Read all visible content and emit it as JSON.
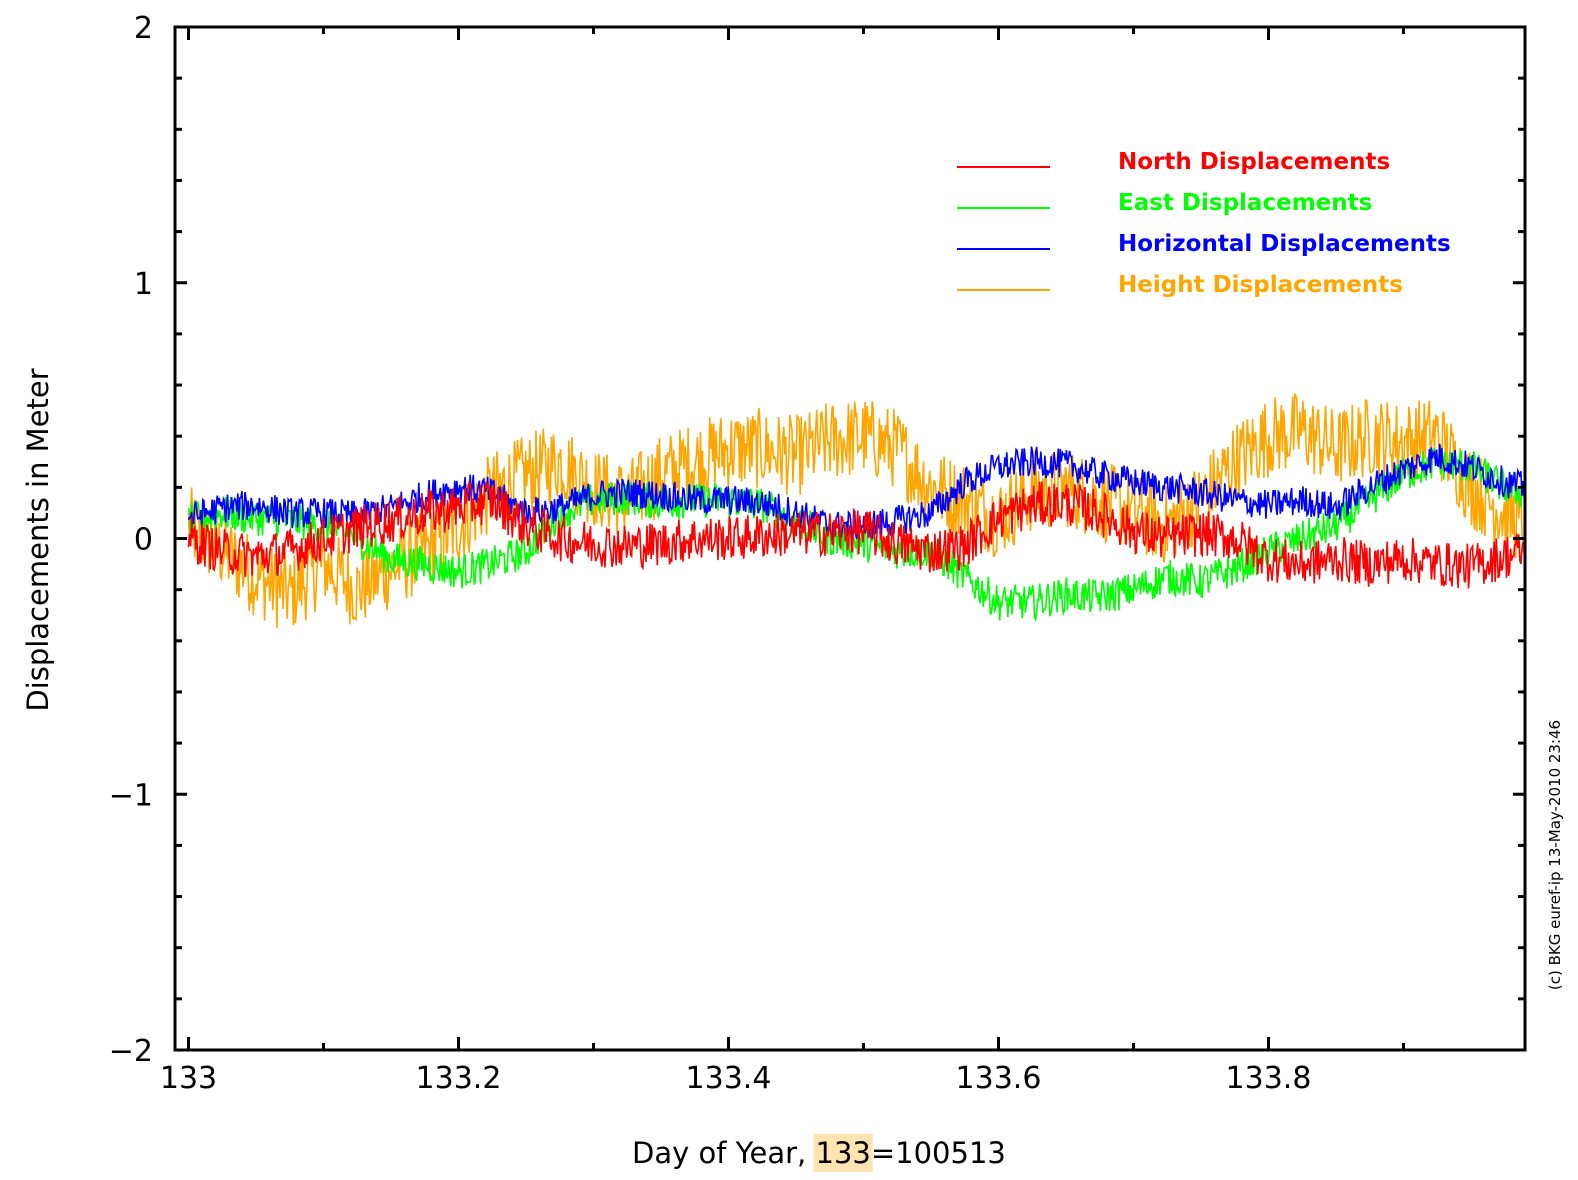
{
  "chart_data": {
    "type": "line",
    "xlabel_prefix": "Day of Year, ",
    "xlabel_highlight": "133",
    "xlabel_suffix": "=100513",
    "ylabel": "Displacements in Meter",
    "credit": "(c) BKG euref-ip 13-May-2010 23:46",
    "xlim": [
      132.99,
      133.99
    ],
    "ylim": [
      -2,
      2
    ],
    "x_ticks": [
      133,
      133.2,
      133.4,
      133.6,
      133.8
    ],
    "x_tick_labels": [
      "133",
      "133.2",
      "133.4",
      "133.6",
      "133.8"
    ],
    "y_ticks": [
      -2,
      -1,
      0,
      1,
      2
    ],
    "y_tick_labels": [
      "−2",
      "−1",
      "0",
      "1",
      "2"
    ],
    "grid": false,
    "legend_position": "top-right",
    "x": [
      133.0,
      133.025,
      133.05,
      133.075,
      133.1,
      133.125,
      133.15,
      133.175,
      133.2,
      133.225,
      133.25,
      133.275,
      133.3,
      133.325,
      133.35,
      133.375,
      133.4,
      133.425,
      133.45,
      133.475,
      133.5,
      133.525,
      133.55,
      133.575,
      133.6,
      133.625,
      133.65,
      133.675,
      133.7,
      133.725,
      133.75,
      133.775,
      133.8,
      133.825,
      133.85,
      133.875,
      133.9,
      133.925,
      133.95,
      133.975,
      133.99
    ],
    "series": [
      {
        "name": "North Displacements",
        "color": "#ff0000",
        "values": [
          0.0,
          -0.05,
          -0.07,
          -0.05,
          0.0,
          0.04,
          0.07,
          0.1,
          0.12,
          0.15,
          0.05,
          0.0,
          -0.02,
          -0.03,
          -0.02,
          0.0,
          0.0,
          0.01,
          0.02,
          0.02,
          0.03,
          -0.02,
          -0.05,
          -0.03,
          0.08,
          0.13,
          0.14,
          0.1,
          0.03,
          0.0,
          0.02,
          0.0,
          -0.08,
          -0.1,
          -0.08,
          -0.1,
          -0.08,
          -0.1,
          -0.11,
          -0.07,
          -0.05
        ]
      },
      {
        "name": "East Displacements",
        "color": "#00ff00",
        "values": [
          0.07,
          0.1,
          0.08,
          0.07,
          0.05,
          0.0,
          -0.08,
          -0.1,
          -0.13,
          -0.1,
          -0.05,
          0.1,
          0.15,
          0.16,
          0.14,
          0.15,
          0.15,
          0.13,
          0.07,
          0.0,
          -0.02,
          -0.05,
          -0.05,
          -0.15,
          -0.25,
          -0.25,
          -0.22,
          -0.23,
          -0.2,
          -0.15,
          -0.17,
          -0.12,
          -0.05,
          0.0,
          0.05,
          0.15,
          0.25,
          0.3,
          0.28,
          0.2,
          0.18
        ]
      },
      {
        "name": "Horizontal Displacements",
        "color": "#0000ff",
        "values": [
          0.08,
          0.12,
          0.13,
          0.1,
          0.1,
          0.09,
          0.12,
          0.17,
          0.2,
          0.18,
          0.1,
          0.12,
          0.17,
          0.18,
          0.17,
          0.15,
          0.15,
          0.14,
          0.1,
          0.05,
          0.05,
          0.07,
          0.1,
          0.22,
          0.28,
          0.3,
          0.29,
          0.25,
          0.22,
          0.2,
          0.18,
          0.15,
          0.13,
          0.15,
          0.12,
          0.2,
          0.27,
          0.32,
          0.28,
          0.22,
          0.2
        ]
      },
      {
        "name": "Height Displacements",
        "color": "#ffa500",
        "values": [
          0.05,
          -0.05,
          -0.15,
          -0.22,
          -0.1,
          -0.2,
          -0.12,
          -0.05,
          0.05,
          0.18,
          0.25,
          0.3,
          0.2,
          0.15,
          0.25,
          0.3,
          0.35,
          0.35,
          0.32,
          0.38,
          0.4,
          0.35,
          0.2,
          0.15,
          0.08,
          0.18,
          0.2,
          0.15,
          0.1,
          0.05,
          0.15,
          0.3,
          0.4,
          0.42,
          0.35,
          0.4,
          0.38,
          0.4,
          0.2,
          0.1,
          0.05
        ]
      }
    ]
  }
}
